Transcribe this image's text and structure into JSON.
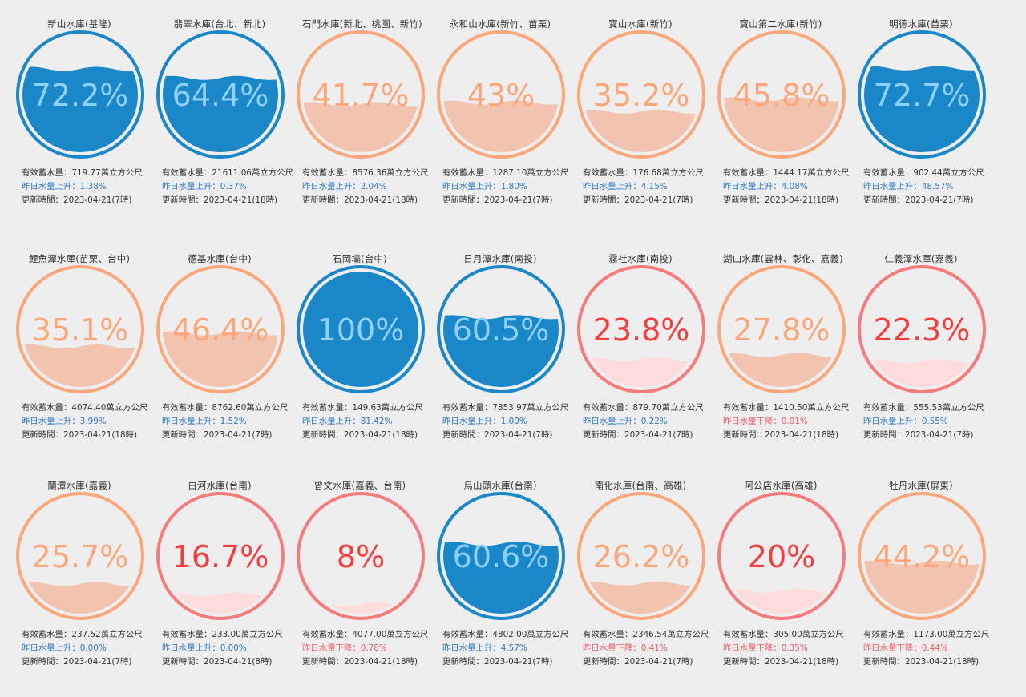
{
  "labels": {
    "capacity_prefix": "有效蓄水量：",
    "capacity_unit": "萬立方公尺",
    "rise_prefix": "昨日水量上升：",
    "fall_prefix": "昨日水量下降：",
    "update_prefix": "更新時間："
  },
  "colors": {
    "high_ring": "#1a87c9",
    "high_water": "#1a87c9",
    "high_text": "#8fd0f5",
    "mid_ring": "#fba77a",
    "mid_water": "#f2c4b0",
    "mid_text": "#fba77a",
    "low_ring": "#f77b7b",
    "low_water": "#ffdcdc",
    "low_text": "#f53d3d",
    "rise_text": "#2f78c4",
    "fall_text": "#f05a6a"
  },
  "reservoirs": [
    {
      "name": "新山水庫(基隆)",
      "percent_label": "72.2%",
      "percent": 72.2,
      "level": "high",
      "capacity": "719.77",
      "trend": "up",
      "change": "1.38%",
      "update": "2023-04-21(7時)"
    },
    {
      "name": "翡翠水庫(台北、新北)",
      "percent_label": "64.4%",
      "percent": 64.4,
      "level": "high",
      "capacity": "21611.06",
      "trend": "up",
      "change": "0.37%",
      "update": "2023-04-21(18時)"
    },
    {
      "name": "石門水庫(新北、桃園、新竹)",
      "percent_label": "41.7%",
      "percent": 41.7,
      "level": "mid",
      "capacity": "8576.36",
      "trend": "up",
      "change": "2.04%",
      "update": "2023-04-21(18時)"
    },
    {
      "name": "永和山水庫(新竹、苗栗)",
      "percent_label": "43%",
      "percent": 43,
      "level": "mid",
      "capacity": "1287.10",
      "trend": "up",
      "change": "1.80%",
      "update": "2023-04-21(7時)"
    },
    {
      "name": "寶山水庫(新竹)",
      "percent_label": "35.2%",
      "percent": 35.2,
      "level": "mid",
      "capacity": "176.68",
      "trend": "up",
      "change": "4.15%",
      "update": "2023-04-21(7時)"
    },
    {
      "name": "寶山第二水庫(新竹)",
      "percent_label": "45.8%",
      "percent": 45.8,
      "level": "mid",
      "capacity": "1444.17",
      "trend": "up",
      "change": "4.08%",
      "update": "2023-04-21(18時)"
    },
    {
      "name": "明德水庫(苗栗)",
      "percent_label": "72.7%",
      "percent": 72.7,
      "level": "high",
      "capacity": "902.44",
      "trend": "up",
      "change": "48.57%",
      "update": "2023-04-21(7時)"
    },
    {
      "name": "鯉魚潭水庫(苗栗、台中)",
      "percent_label": "35.1%",
      "percent": 35.1,
      "level": "mid",
      "capacity": "4074.40",
      "trend": "up",
      "change": "3.99%",
      "update": "2023-04-21(18時)"
    },
    {
      "name": "德基水庫(台中)",
      "percent_label": "46.4%",
      "percent": 46.4,
      "level": "mid",
      "capacity": "8762.60",
      "trend": "up",
      "change": "1.52%",
      "update": "2023-04-21(7時)"
    },
    {
      "name": "石岡壩(台中)",
      "percent_label": "100%",
      "percent": 100,
      "level": "high",
      "capacity": "149.63",
      "trend": "up",
      "change": "81.42%",
      "update": "2023-04-21(18時)"
    },
    {
      "name": "日月潭水庫(南投)",
      "percent_label": "60.5%",
      "percent": 60.5,
      "level": "high",
      "capacity": "7853.97",
      "trend": "up",
      "change": "1.00%",
      "update": "2023-04-21(7時)"
    },
    {
      "name": "霧社水庫(南投)",
      "percent_label": "23.8%",
      "percent": 23.8,
      "level": "low",
      "capacity": "879.70",
      "trend": "up",
      "change": "0.22%",
      "update": "2023-04-21(7時)"
    },
    {
      "name": "湖山水庫(雲林、彰化、嘉義)",
      "percent_label": "27.8%",
      "percent": 27.8,
      "level": "mid",
      "capacity": "1410.50",
      "trend": "down",
      "change": "0.01%",
      "update": "2023-04-21(18時)"
    },
    {
      "name": "仁義潭水庫(嘉義)",
      "percent_label": "22.3%",
      "percent": 22.3,
      "level": "low",
      "capacity": "555.53",
      "trend": "up",
      "change": "0.55%",
      "update": "2023-04-21(7時)"
    },
    {
      "name": "蘭潭水庫(嘉義)",
      "percent_label": "25.7%",
      "percent": 25.7,
      "level": "mid",
      "capacity": "237.52",
      "trend": "up",
      "change": "0.00%",
      "update": "2023-04-21(7時)"
    },
    {
      "name": "白河水庫(台南)",
      "percent_label": "16.7%",
      "percent": 16.7,
      "level": "low",
      "capacity": "233.00",
      "trend": "up",
      "change": "0.00%",
      "update": "2023-04-21(8時)"
    },
    {
      "name": "曾文水庫(嘉義、台南)",
      "percent_label": "8%",
      "percent": 8,
      "level": "low",
      "capacity": "4077.00",
      "trend": "down",
      "change": "0.78%",
      "update": "2023-04-21(18時)"
    },
    {
      "name": "烏山頭水庫(台南)",
      "percent_label": "60.6%",
      "percent": 60.6,
      "level": "high",
      "capacity": "4802.00",
      "trend": "up",
      "change": "4.57%",
      "update": "2023-04-21(7時)"
    },
    {
      "name": "南化水庫(台南、高雄)",
      "percent_label": "26.2%",
      "percent": 26.2,
      "level": "mid",
      "capacity": "2346.54",
      "trend": "down",
      "change": "0.41%",
      "update": "2023-04-21(7時)"
    },
    {
      "name": "阿公店水庫(高雄)",
      "percent_label": "20%",
      "percent": 20,
      "level": "low",
      "capacity": "305.00",
      "trend": "down",
      "change": "0.35%",
      "update": "2023-04-21(18時)"
    },
    {
      "name": "牡丹水庫(屏東)",
      "percent_label": "44.2%",
      "percent": 44.2,
      "level": "mid",
      "capacity": "1173.00",
      "trend": "down",
      "change": "0.44%",
      "update": "2023-04-21(18時)"
    }
  ]
}
